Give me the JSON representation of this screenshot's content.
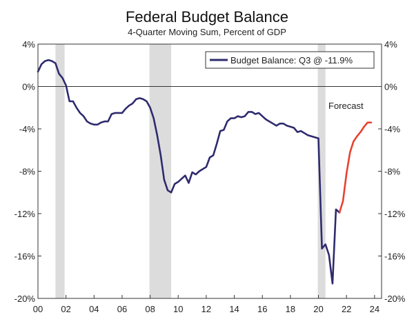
{
  "chart_data": {
    "type": "line",
    "title": "Federal Budget Balance",
    "subtitle": "4-Quarter Moving Sum, Percent of GDP",
    "ylim": [
      -20,
      4
    ],
    "xlim": [
      2000,
      2024.5
    ],
    "y_ticks": [
      4,
      0,
      -4,
      -8,
      -12,
      -16,
      -20
    ],
    "y_tick_labels": [
      "4%",
      "0%",
      "-4%",
      "-8%",
      "-12%",
      "-16%",
      "-20%"
    ],
    "x_ticks": [
      2000,
      2002,
      2004,
      2006,
      2008,
      2010,
      2012,
      2014,
      2016,
      2018,
      2020,
      2022,
      2024
    ],
    "x_tick_labels": [
      "00",
      "02",
      "04",
      "06",
      "08",
      "10",
      "12",
      "14",
      "16",
      "18",
      "20",
      "22",
      "24"
    ],
    "recessions": [
      [
        2001.25,
        2001.9
      ],
      [
        2007.95,
        2009.5
      ],
      [
        2019.95,
        2020.5
      ]
    ],
    "legend": {
      "label": "Budget Balance: Q3 @ -11.9%",
      "position": "top-right"
    },
    "annotation": "Forecast",
    "colors": {
      "actual": "#2e2a6e",
      "forecast": "#e8402f",
      "recession": "#dcdcdc"
    },
    "series": [
      {
        "name": "Budget Balance",
        "style": "actual",
        "x": [
          2000.0,
          2000.25,
          2000.5,
          2000.75,
          2001.0,
          2001.25,
          2001.5,
          2001.75,
          2002.0,
          2002.25,
          2002.5,
          2002.75,
          2003.0,
          2003.25,
          2003.5,
          2003.75,
          2004.0,
          2004.25,
          2004.5,
          2004.75,
          2005.0,
          2005.25,
          2005.5,
          2005.75,
          2006.0,
          2006.25,
          2006.5,
          2006.75,
          2007.0,
          2007.25,
          2007.5,
          2007.75,
          2008.0,
          2008.25,
          2008.5,
          2008.75,
          2009.0,
          2009.25,
          2009.5,
          2009.75,
          2010.0,
          2010.25,
          2010.5,
          2010.75,
          2011.0,
          2011.25,
          2011.5,
          2011.75,
          2012.0,
          2012.25,
          2012.5,
          2012.75,
          2013.0,
          2013.25,
          2013.5,
          2013.75,
          2014.0,
          2014.25,
          2014.5,
          2014.75,
          2015.0,
          2015.25,
          2015.5,
          2015.75,
          2016.0,
          2016.25,
          2016.5,
          2016.75,
          2017.0,
          2017.25,
          2017.5,
          2017.75,
          2018.0,
          2018.25,
          2018.5,
          2018.75,
          2019.0,
          2019.25,
          2019.5,
          2019.75,
          2020.0,
          2020.25,
          2020.5,
          2020.75,
          2021.0,
          2021.25,
          2021.5
        ],
        "values": [
          1.4,
          2.1,
          2.4,
          2.5,
          2.4,
          2.2,
          1.2,
          0.8,
          0.1,
          -1.4,
          -1.4,
          -2.0,
          -2.5,
          -2.8,
          -3.3,
          -3.5,
          -3.6,
          -3.6,
          -3.4,
          -3.3,
          -3.3,
          -2.6,
          -2.5,
          -2.5,
          -2.5,
          -2.1,
          -1.8,
          -1.6,
          -1.2,
          -1.1,
          -1.2,
          -1.4,
          -2.0,
          -3.0,
          -4.6,
          -6.5,
          -8.8,
          -9.8,
          -10.0,
          -9.2,
          -9.0,
          -8.7,
          -8.4,
          -9.1,
          -8.1,
          -8.3,
          -8.0,
          -7.8,
          -7.6,
          -6.7,
          -6.5,
          -5.4,
          -4.2,
          -4.1,
          -3.3,
          -3.0,
          -3.0,
          -2.8,
          -2.9,
          -2.8,
          -2.4,
          -2.4,
          -2.6,
          -2.5,
          -2.8,
          -3.1,
          -3.3,
          -3.5,
          -3.7,
          -3.5,
          -3.5,
          -3.7,
          -3.8,
          -3.9,
          -4.3,
          -4.2,
          -4.4,
          -4.6,
          -4.7,
          -4.8,
          -4.9,
          -15.3,
          -14.9,
          -15.9,
          -18.6,
          -11.6,
          -11.9
        ]
      },
      {
        "name": "Forecast",
        "style": "forecast",
        "x": [
          2021.5,
          2021.75,
          2022.0,
          2022.25,
          2022.5,
          2022.75,
          2023.0,
          2023.25,
          2023.5,
          2023.75
        ],
        "values": [
          -11.9,
          -10.8,
          -8.2,
          -6.2,
          -5.2,
          -4.7,
          -4.3,
          -3.8,
          -3.4,
          -3.4
        ]
      }
    ]
  }
}
